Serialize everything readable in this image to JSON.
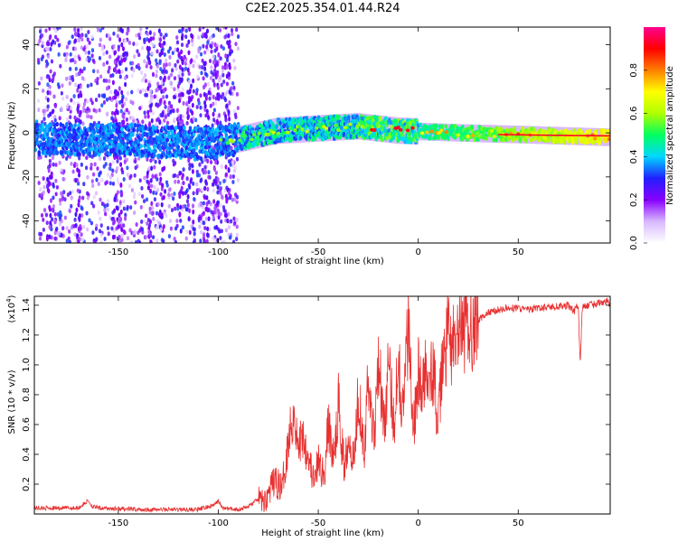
{
  "title": "C2E2.2025.354.01.44.R24",
  "chart_data": [
    {
      "type": "heatmap",
      "xlabel": "Height of straight line (km)",
      "ylabel": "Frequency (Hz)",
      "xlim": [
        -192,
        96
      ],
      "ylim": [
        -50,
        48
      ],
      "xticks": [
        -150,
        -100,
        -50,
        0,
        50
      ],
      "yticks": [
        -40,
        -20,
        0,
        20,
        40
      ],
      "grid": false,
      "colorbar": {
        "label": "Normalized spectral amplitude",
        "range": [
          0,
          1
        ],
        "ticks": [
          0,
          0.2,
          0.4,
          0.6,
          0.8
        ],
        "tick_labels": [
          "0.0",
          "0.2",
          "0.4",
          "0.6",
          "0.8"
        ],
        "colors": [
          "#ffffff",
          "#d8b8ff",
          "#8800ff",
          "#2020ff",
          "#00d8ff",
          "#00ff60",
          "#b0ff00",
          "#ffff00",
          "#ff8000",
          "#ff0000",
          "#ff0090"
        ]
      },
      "features": {
        "ridge_center_hz": [
          {
            "x": -190,
            "y": -3
          },
          {
            "x": -150,
            "y": -3
          },
          {
            "x": -110,
            "y": -5
          },
          {
            "x": -90,
            "y": -3
          },
          {
            "x": -70,
            "y": 1
          },
          {
            "x": -50,
            "y": 2
          },
          {
            "x": -30,
            "y": 3
          },
          {
            "x": -10,
            "y": 1
          },
          {
            "x": 20,
            "y": 0
          },
          {
            "x": 60,
            "y": -1
          },
          {
            "x": 94,
            "y": -2
          }
        ],
        "noise_band_x": [
          -190,
          -90
        ],
        "peak_x_range": [
          -25,
          0
        ]
      }
    },
    {
      "type": "line",
      "xlabel": "Height of straight line (km)",
      "ylabel": "SNR (10 * v/v)",
      "y_multiplier": "(x10",
      "y_multiplier_exp": "4",
      "y_multiplier_close": ")",
      "xlim": [
        -192,
        96
      ],
      "ylim": [
        0,
        1.46
      ],
      "xticks": [
        -150,
        -100,
        -50,
        0,
        50
      ],
      "yticks": [
        0.2,
        0.4,
        0.6,
        0.8,
        1.0,
        1.2,
        1.4
      ],
      "ytick_labels": [
        "0.2",
        "0.4",
        "0.6",
        "0.8",
        "1.0",
        "1.2",
        "1.4"
      ],
      "grid": false,
      "color": "#e83030",
      "series": [
        {
          "x": [
            -192,
            -170,
            -165,
            -163,
            -160,
            -140,
            -110,
            -102,
            -100,
            -98,
            -90,
            -85,
            -80,
            -77,
            -72,
            -68,
            -65,
            -62,
            -60,
            -58,
            -55,
            -52,
            -50,
            -47,
            -45,
            -42,
            -40,
            -37,
            -35,
            -32,
            -30,
            -27,
            -25,
            -22,
            -20,
            -17,
            -15,
            -12,
            -10,
            -8,
            -5,
            -2,
            0,
            2,
            5,
            8,
            10,
            12,
            15,
            18,
            20,
            25,
            30,
            35,
            40,
            45,
            50,
            55,
            60,
            65,
            70,
            75,
            78,
            80,
            81,
            82,
            85,
            90,
            94,
            96
          ],
          "y": [
            0.04,
            0.04,
            0.09,
            0.05,
            0.04,
            0.03,
            0.03,
            0.06,
            0.09,
            0.04,
            0.03,
            0.05,
            0.1,
            0.08,
            0.22,
            0.18,
            0.5,
            0.7,
            0.42,
            0.55,
            0.4,
            0.2,
            0.35,
            0.25,
            0.6,
            0.35,
            0.75,
            0.3,
            0.55,
            0.35,
            0.85,
            0.45,
            0.9,
            0.5,
            1.1,
            0.55,
            1.0,
            0.6,
            1.12,
            0.65,
            1.25,
            0.6,
            0.95,
            0.8,
            1.05,
            0.9,
            0.58,
            1.0,
            1.2,
            1.1,
            1.18,
            1.25,
            1.3,
            1.35,
            1.37,
            1.38,
            1.38,
            1.37,
            1.38,
            1.39,
            1.39,
            1.4,
            1.36,
            1.4,
            1.0,
            1.38,
            1.4,
            1.41,
            1.43,
            1.4
          ]
        }
      ]
    }
  ]
}
